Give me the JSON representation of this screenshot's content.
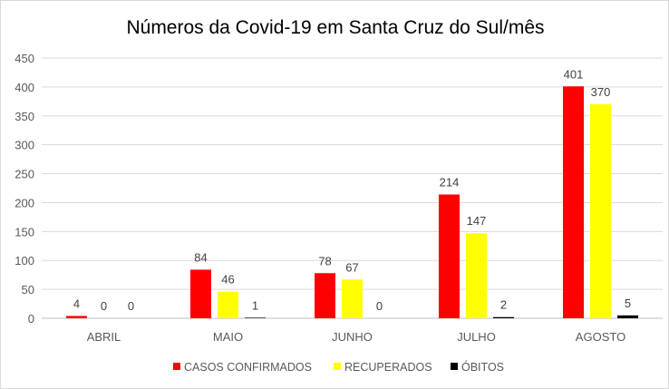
{
  "chart_data": {
    "type": "bar",
    "title": "Números da Covid-19 em Santa Cruz do Sul/mês",
    "xlabel": "",
    "ylabel": "",
    "categories": [
      "ABRIL",
      "MAIO",
      "JUNHO",
      "JULHO",
      "AGOSTO"
    ],
    "series": [
      {
        "name": "CASOS CONFIRMADOS",
        "color": "#ff0000",
        "values": [
          4,
          84,
          78,
          214,
          401
        ]
      },
      {
        "name": "RECUPERADOS",
        "color": "#ffff00",
        "values": [
          0,
          46,
          67,
          147,
          370
        ]
      },
      {
        "name": "ÓBITOS",
        "color": "#000000",
        "values": [
          0,
          1,
          0,
          2,
          5
        ]
      }
    ],
    "ylim": [
      0,
      450
    ],
    "yticks": [
      0,
      50,
      100,
      150,
      200,
      250,
      300,
      350,
      400,
      450
    ],
    "grid": true,
    "legend_position": "bottom",
    "data_labels": true
  }
}
